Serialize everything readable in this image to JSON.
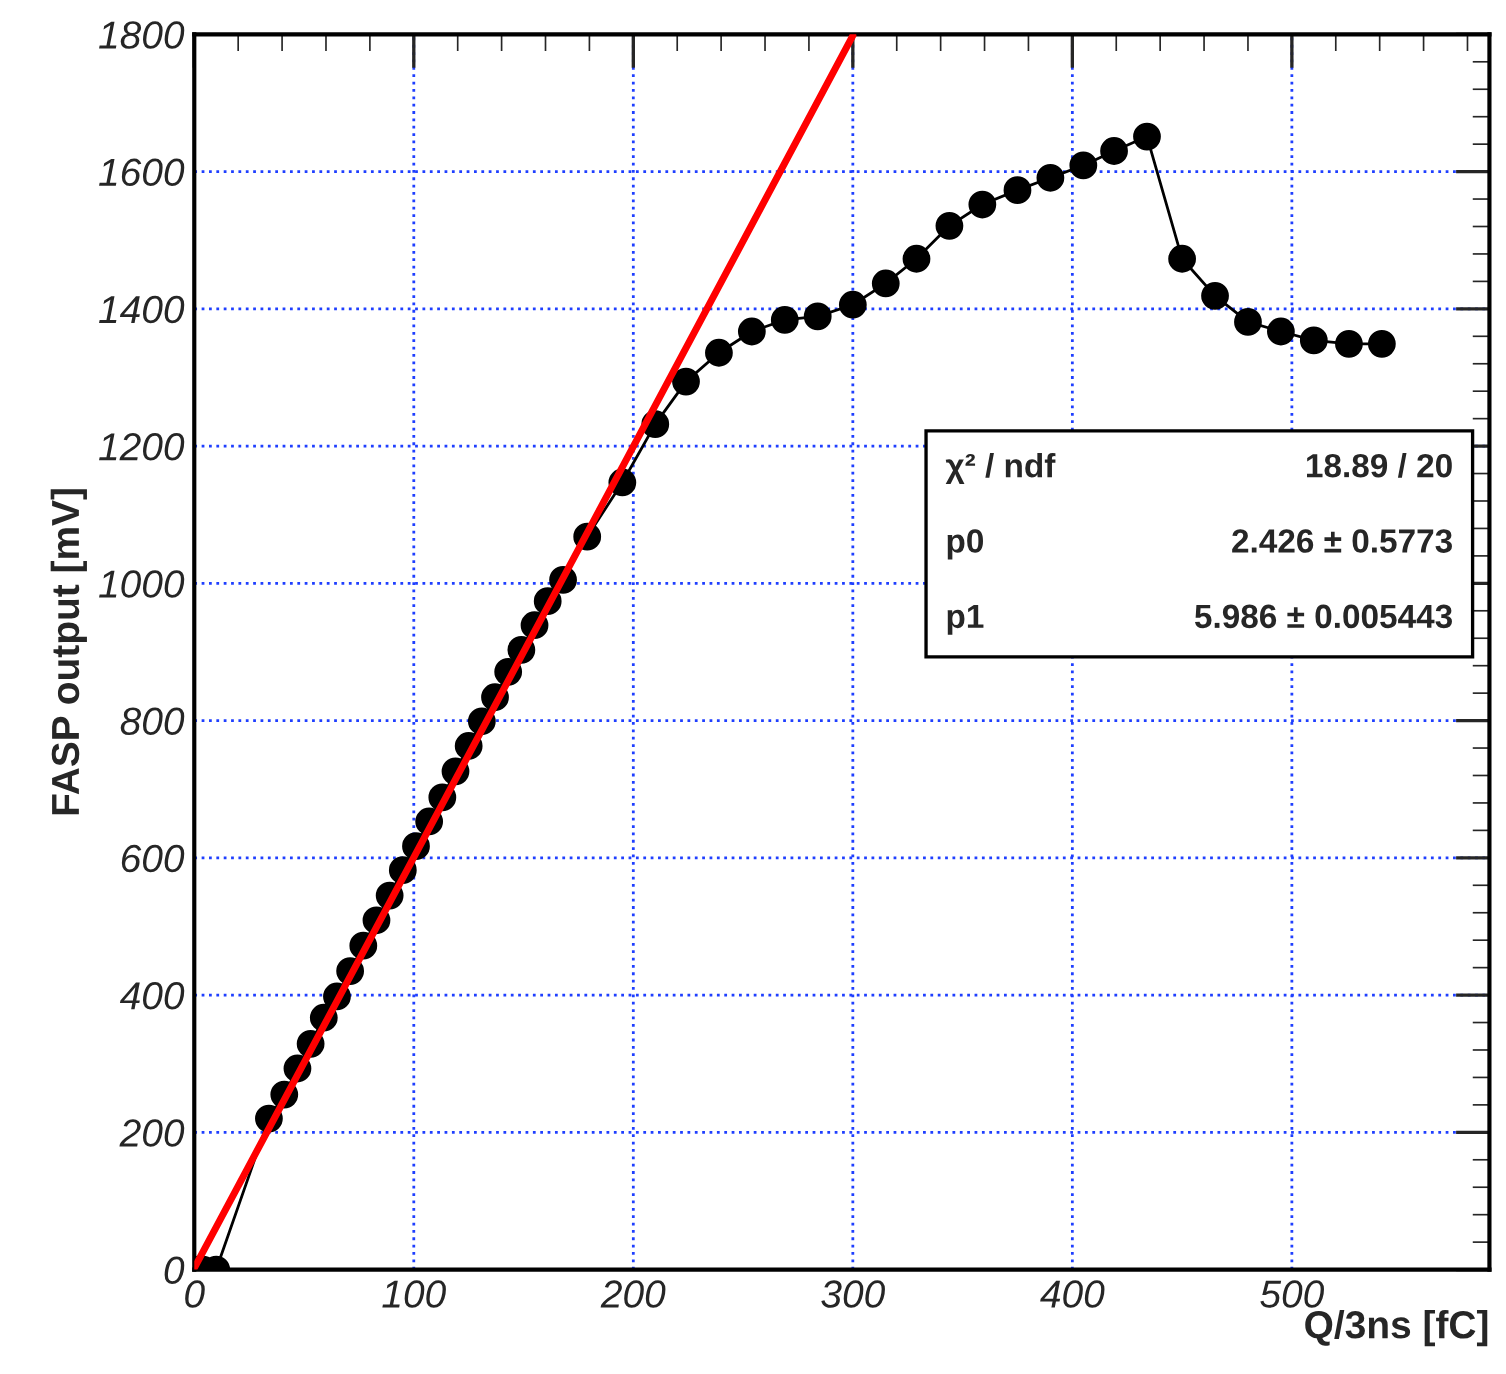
{
  "chart_data": {
    "type": "line",
    "xlabel": "Q/3ns [fC]",
    "ylabel": "FASP output [mV]",
    "xlim": [
      0,
      590
    ],
    "ylim": [
      0,
      1800
    ],
    "xticks": [
      0,
      100,
      200,
      300,
      400,
      500
    ],
    "yticks": [
      0,
      200,
      400,
      600,
      800,
      1000,
      1200,
      1400,
      1600,
      1800
    ],
    "grid": true,
    "legend": false,
    "series": [
      {
        "color": "#000000",
        "marker": "circle",
        "line_style": "solid",
        "x": [
          0,
          4,
          10,
          34,
          41,
          47,
          53,
          59,
          65,
          71,
          77,
          83,
          89,
          95,
          101,
          107,
          113,
          119,
          125,
          131,
          137,
          143,
          149,
          155,
          161,
          168,
          179,
          195,
          210,
          224,
          239,
          254,
          269,
          284,
          300,
          315,
          329,
          344,
          359,
          375,
          390,
          405,
          419,
          434,
          450,
          465,
          480,
          495,
          510,
          526,
          541
        ],
        "values": [
          0,
          0,
          0,
          220,
          255,
          293,
          329,
          367,
          398,
          435,
          472,
          509,
          545,
          582,
          617,
          653,
          688,
          726,
          763,
          799,
          834,
          871,
          903,
          939,
          974,
          1005,
          1068,
          1147,
          1232,
          1294,
          1336,
          1367,
          1384,
          1389,
          1406,
          1437,
          1473,
          1521,
          1552,
          1573,
          1591,
          1609,
          1630,
          1651,
          1473,
          1419,
          1381,
          1367,
          1354,
          1349,
          1349
        ]
      },
      {
        "color": "#ff0000",
        "marker": "none",
        "line_style": "solid",
        "x": [
          0,
          300
        ],
        "values": [
          2,
          1798
        ]
      }
    ],
    "annotations": [
      "χ² / ndf",
      "18.89 / 20",
      "p0",
      "2.426 ± 0.5773",
      "p1",
      "5.986 ± 0.005443"
    ]
  }
}
